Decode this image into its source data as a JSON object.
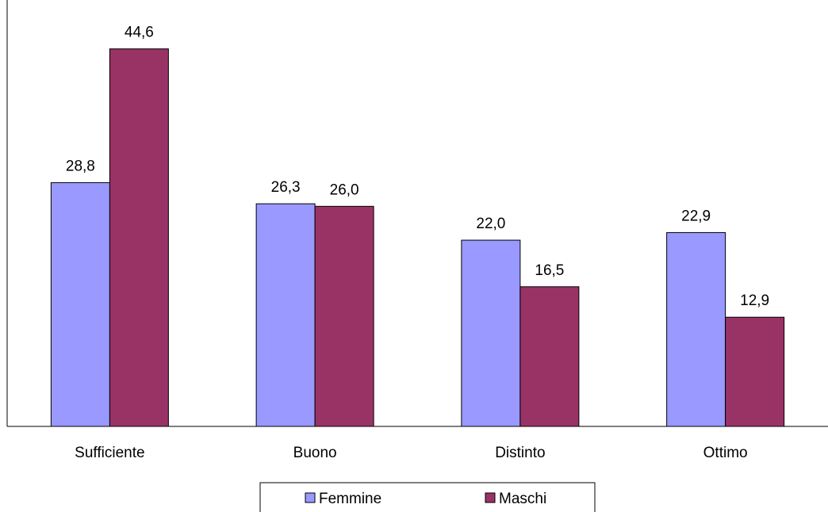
{
  "chart_data": {
    "type": "bar",
    "categories": [
      "Sufficiente",
      "Buono",
      "Distinto",
      "Ottimo"
    ],
    "series": [
      {
        "name": "Femmine",
        "values": [
          28.8,
          26.3,
          22.0,
          22.9
        ],
        "labels": [
          "28,8",
          "26,3",
          "22,0",
          "22,9"
        ],
        "color": "#9999ff"
      },
      {
        "name": "Maschi",
        "values": [
          44.6,
          26.0,
          16.5,
          12.9
        ],
        "labels": [
          "44,6",
          "26,0",
          "16,5",
          "12,9"
        ],
        "color": "#993366"
      }
    ],
    "ylim": [
      0,
      50
    ],
    "grid": false,
    "legend_position": "bottom-center"
  }
}
